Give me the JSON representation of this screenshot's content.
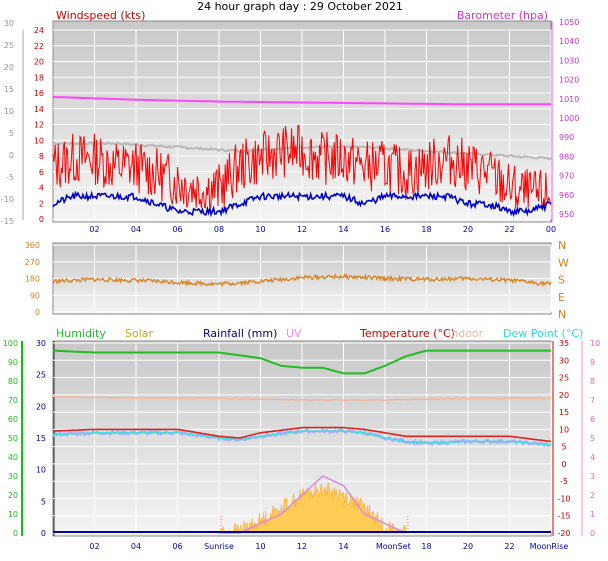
{
  "title": "24 hour graph day : 29 October 2021",
  "chart_data": [
    {
      "type": "line",
      "panel": "wind-baro",
      "left_axis_label": "Windspeed (kts)",
      "right_axis_label": "Barometer (hpa)",
      "left_ticks": [
        "24",
        "22",
        "20",
        "18",
        "16",
        "14",
        "12",
        "10",
        "8",
        "6",
        "4",
        "2",
        "0"
      ],
      "outer_ticks": [
        "30",
        "25",
        "20",
        "15",
        "10",
        "5",
        "0",
        "-5",
        "-10",
        "-15"
      ],
      "right_ticks": [
        "1050",
        "1040",
        "1030",
        "1020",
        "1010",
        "1000",
        "990",
        "980",
        "970",
        "960",
        "950"
      ],
      "x_ticks": [
        "02",
        "04",
        "06",
        "08",
        "10",
        "12",
        "14",
        "16",
        "18",
        "20",
        "22",
        "00"
      ],
      "ylim": [
        0,
        25
      ],
      "baro_ylim": [
        947,
        1050
      ],
      "colors": {
        "gust": "#ff0000",
        "wind": "#0000cc",
        "barometer": "#ff44ff",
        "indoor": "#b8b8b8"
      },
      "series": [
        {
          "name": "gust",
          "x": [
            0,
            1,
            2,
            3,
            4,
            5,
            6,
            7,
            8,
            9,
            10,
            11,
            12,
            13,
            14,
            15,
            16,
            17,
            18,
            19,
            20,
            21,
            22,
            23,
            24
          ],
          "values": [
            7,
            8,
            8,
            7,
            7,
            6,
            5,
            4,
            4,
            7,
            8,
            9,
            9,
            8,
            8,
            7,
            7,
            6,
            7,
            8,
            7,
            6,
            4,
            3,
            3
          ]
        },
        {
          "name": "wind",
          "x": [
            0,
            1,
            2,
            3,
            4,
            5,
            6,
            7,
            8,
            9,
            10,
            11,
            12,
            13,
            14,
            15,
            16,
            17,
            18,
            19,
            20,
            21,
            22,
            23,
            24
          ],
          "values": [
            2,
            3,
            3,
            3,
            3,
            2,
            1,
            1,
            1,
            2,
            3,
            3,
            3,
            3,
            3,
            2,
            3,
            3,
            3,
            3,
            2,
            2,
            1,
            1,
            2
          ]
        },
        {
          "name": "barometer",
          "x": [
            0,
            4,
            8,
            12,
            16,
            20,
            24
          ],
          "values": [
            1013.5,
            1012,
            1011,
            1010.5,
            1010,
            1009.5,
            1009.5
          ]
        },
        {
          "name": "indoor",
          "x": [
            0,
            3,
            6,
            9,
            12,
            15,
            18,
            21,
            24
          ],
          "values": [
            10,
            10,
            9.5,
            9,
            9.5,
            9.5,
            9,
            8.5,
            8
          ]
        }
      ]
    },
    {
      "type": "line",
      "panel": "direction",
      "left_ticks": [
        "360",
        "270",
        "180",
        "90",
        "0"
      ],
      "right_ticks": [
        "N",
        "W",
        "S",
        "E",
        "N"
      ],
      "ylim": [
        0,
        360
      ],
      "colors": {
        "direction": "#d8801f"
      },
      "series": [
        {
          "name": "direction",
          "x": [
            0,
            2,
            4,
            6,
            8,
            10,
            12,
            14,
            16,
            18,
            20,
            22,
            24
          ],
          "values": [
            165,
            175,
            170,
            160,
            150,
            165,
            185,
            190,
            180,
            175,
            180,
            170,
            150
          ]
        }
      ]
    },
    {
      "type": "area",
      "panel": "temp-hum",
      "legend": [
        "Humidity",
        "Solar",
        "Rainfall (mm)",
        "UV",
        "Temperature (°C)",
        "Indoor",
        "Dew Point (°C)"
      ],
      "humidity_ticks": [
        "100",
        "90",
        "80",
        "70",
        "60",
        "50",
        "40",
        "30",
        "20",
        "10",
        "0"
      ],
      "solar_ticks": [
        "30",
        "25",
        "20",
        "15",
        "10",
        "5",
        "0"
      ],
      "temp_ticks": [
        "35",
        "30",
        "25",
        "20",
        "15",
        "10",
        "5",
        "0",
        "-5",
        "-10",
        "-15",
        "-20"
      ],
      "uv_ticks": [
        "10",
        "9",
        "8",
        "7",
        "6",
        "5",
        "4",
        "3",
        "2",
        "1",
        "0"
      ],
      "x_labels": [
        "02",
        "04",
        "06",
        "Sunrise",
        "10",
        "12",
        "14",
        "MoonSet",
        "18",
        "20",
        "22",
        "MoonRise"
      ],
      "ylim": [
        -20,
        35
      ],
      "colors": {
        "humidity": "#22bb22",
        "solar": "#ffcc55",
        "rainfall": "#0000aa",
        "uv": "#dd88dd",
        "temperature": "#dd2222",
        "indoor": "#f0b8a0",
        "dewpoint": "#44dddd",
        "dewpoint_fill": "#aaaaff"
      },
      "series": [
        {
          "name": "Humidity",
          "x": [
            0,
            2,
            4,
            6,
            8,
            10,
            11,
            12,
            13,
            14,
            15,
            16,
            17,
            18,
            20,
            22,
            24
          ],
          "values": [
            96,
            95,
            95,
            95,
            95,
            92,
            88,
            87,
            87,
            84,
            84,
            88,
            93,
            96,
            96,
            96,
            96
          ]
        },
        {
          "name": "Temperature (°C)",
          "x": [
            0,
            2,
            4,
            6,
            8,
            9,
            10,
            12,
            14,
            15,
            16,
            17,
            18,
            20,
            22,
            24
          ],
          "values": [
            9.5,
            10,
            10,
            10,
            8,
            7.5,
            9,
            10.5,
            10.5,
            10,
            9,
            8,
            8,
            8,
            8,
            6.5
          ]
        },
        {
          "name": "Dew Point (°C)",
          "x": [
            0,
            2,
            4,
            6,
            8,
            9,
            10,
            12,
            14,
            15,
            16,
            17,
            18,
            20,
            22,
            24
          ],
          "values": [
            8.5,
            9,
            9,
            9,
            7.5,
            7,
            8,
            9.5,
            9.5,
            9,
            7.5,
            6.5,
            6,
            6.5,
            6.5,
            5.5
          ]
        },
        {
          "name": "Indoor",
          "x": [
            0,
            4,
            8,
            12,
            16,
            20,
            24
          ],
          "values": [
            19.5,
            19,
            19,
            18.5,
            18.5,
            19,
            19
          ]
        },
        {
          "name": "Solar",
          "x": [
            8,
            9,
            10,
            11,
            12,
            13,
            14,
            15,
            16,
            17
          ],
          "values": [
            0,
            0.5,
            2,
            4,
            6,
            7,
            6,
            4,
            1,
            0
          ]
        },
        {
          "name": "UV",
          "x": [
            8,
            9,
            10,
            11,
            12,
            13,
            14,
            15,
            16,
            17
          ],
          "values": [
            0,
            0,
            0.5,
            1,
            2,
            3,
            2.5,
            1,
            0.5,
            0
          ]
        },
        {
          "name": "Rainfall (mm)",
          "x": [
            0,
            24
          ],
          "values": [
            0,
            0
          ]
        }
      ]
    }
  ]
}
